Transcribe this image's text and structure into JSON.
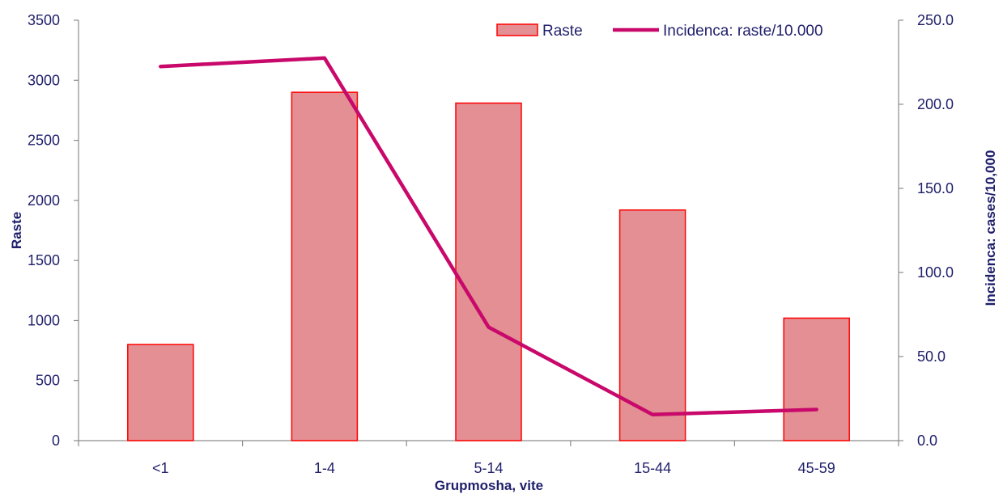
{
  "chart_data": {
    "type": "bar",
    "title": "",
    "categories": [
      "<1",
      "1-4",
      "5-14",
      "15-44",
      "45-59"
    ],
    "xlabel": "Grupmosha, vite",
    "ylabel": "Raste",
    "y2label": "Incidenca: cases/10,000",
    "ylim": [
      0,
      3500
    ],
    "yticks": [
      "0",
      "500",
      "1000",
      "1500",
      "2000",
      "2500",
      "3000",
      "3500"
    ],
    "y2lim": [
      0,
      250
    ],
    "y2ticks": [
      "0.0",
      "50.0",
      "100.0",
      "150.0",
      "200.0",
      "250.0"
    ],
    "grid": false,
    "legend_position": "top-right",
    "series": [
      {
        "name": "Raste",
        "type": "bar",
        "axis": "left",
        "values": [
          800,
          2900,
          2810,
          1920,
          1020
        ],
        "color": "#e38f93",
        "stroke": "#ff0000"
      },
      {
        "name": "Incidenca: raste/10.000",
        "type": "line",
        "axis": "right",
        "values": [
          222.5,
          227.5,
          67.5,
          15.5,
          18.5
        ],
        "color": "#c8096b"
      }
    ]
  }
}
